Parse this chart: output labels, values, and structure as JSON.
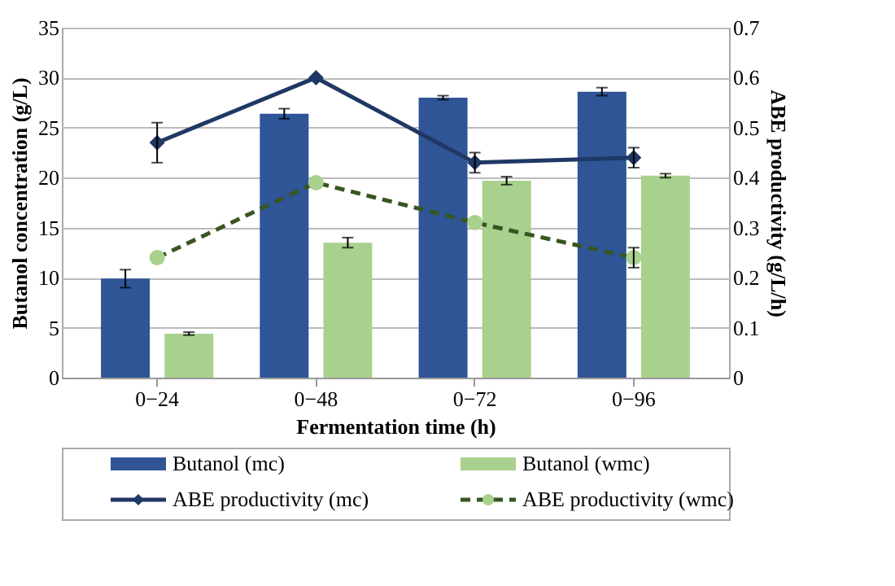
{
  "chart_data": {
    "type": "bar",
    "xlabel": "Fermentation time (h)",
    "ylabel": "Butanol concentration (g/L)",
    "y2label": "ABE productivity (g/L/h)",
    "categories": [
      "0−24",
      "0−48",
      "0−72",
      "0−96"
    ],
    "series": [
      {
        "name": "Butanol (mc)",
        "color": "#2f5597",
        "values": [
          9.9,
          26.4,
          28.0,
          28.6
        ],
        "errors": [
          0.9,
          0.5,
          0.2,
          0.4
        ]
      },
      {
        "name": "Butanol (wmc)",
        "color": "#a9d18e",
        "values": [
          4.4,
          13.5,
          19.7,
          20.2
        ],
        "errors": [
          0.15,
          0.5,
          0.4,
          0.2
        ]
      },
      {
        "name": "ABE productivity (mc)",
        "type": "line",
        "axis": "y2",
        "color": "#1f3864",
        "marker": "diamond",
        "line_style": "solid",
        "values": [
          0.47,
          0.6,
          0.43,
          0.44
        ],
        "errors": [
          0.04,
          null,
          0.02,
          0.02
        ]
      },
      {
        "name": "ABE productivity (wmc)",
        "type": "line",
        "axis": "y2",
        "color": "#375623",
        "marker": "circle",
        "line_style": "dashed",
        "values": [
          0.24,
          0.39,
          0.31,
          0.24
        ],
        "errors": [
          null,
          null,
          null,
          0.02
        ]
      }
    ],
    "ylim": [
      0,
      35
    ],
    "yticks": [
      0,
      5,
      10,
      15,
      20,
      25,
      30,
      35
    ],
    "y2lim": [
      0,
      0.7
    ],
    "y2ticks": [
      0,
      0.1,
      0.2,
      0.3,
      0.4,
      0.5,
      0.6,
      0.7
    ],
    "grid": "y",
    "legend": "bottom"
  }
}
